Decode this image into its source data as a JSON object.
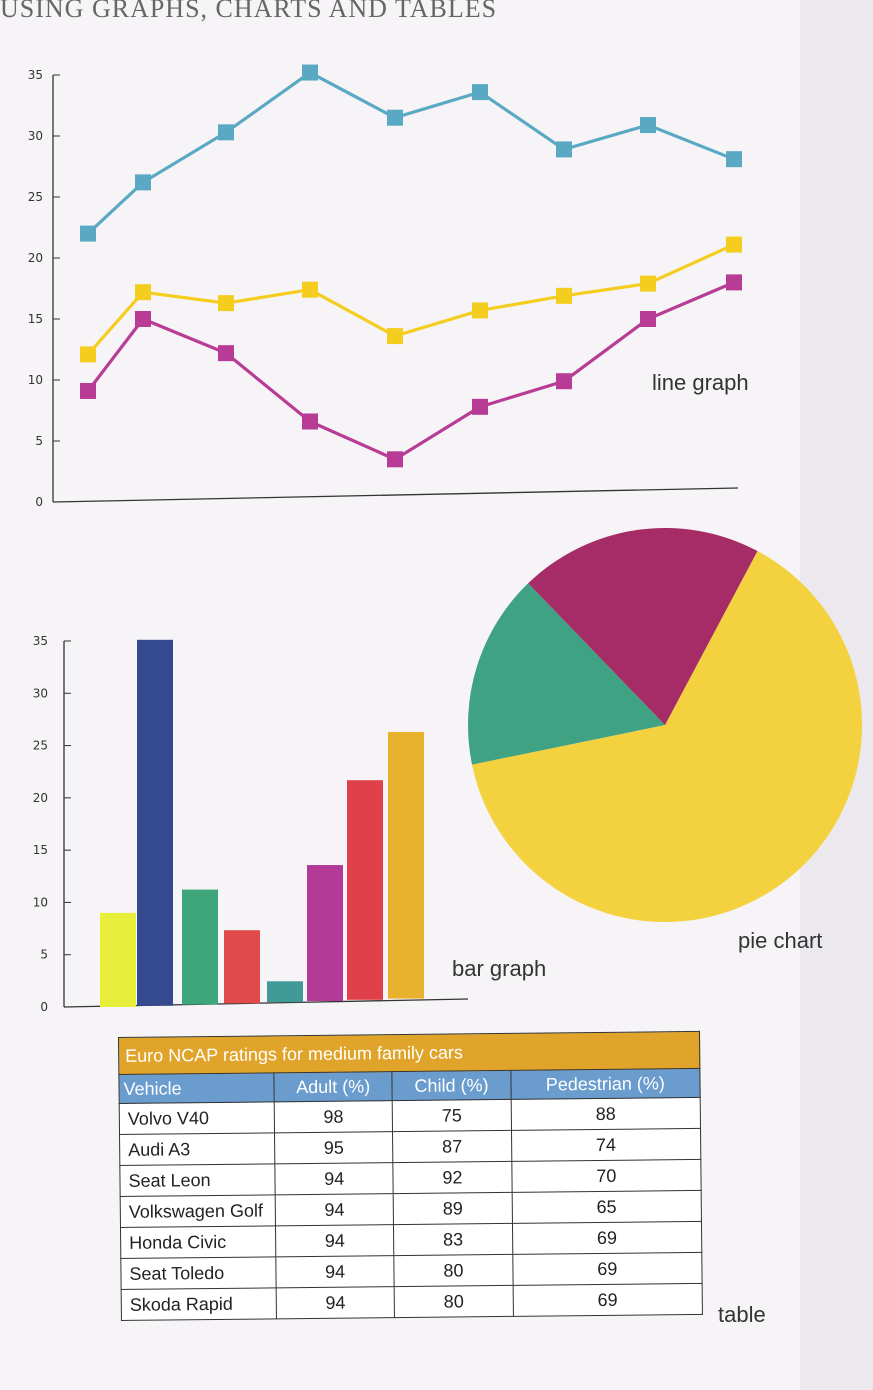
{
  "header": {
    "title": "USING GRAPHS, CHARTS AND TABLES"
  },
  "captions": {
    "line": "line graph",
    "bar": "bar graph",
    "pie": "pie chart",
    "table": "table"
  },
  "chart_data": [
    {
      "type": "line",
      "title": "",
      "xlabel": "",
      "ylabel": "",
      "ylim": [
        0,
        35
      ],
      "yticks": [
        "0",
        "5",
        "10",
        "15",
        "20",
        "25",
        "30",
        "35"
      ],
      "x": [
        1,
        2,
        3,
        4,
        5,
        6,
        7,
        8,
        9
      ],
      "grid": false,
      "series": [
        {
          "color": "#5aa9c4",
          "values": [
            22,
            26.2,
            30.3,
            35.2,
            31.5,
            33.6,
            28.9,
            30.9,
            28.1
          ]
        },
        {
          "color": "#f4cd1f",
          "values": [
            12.1,
            17.2,
            16.3,
            17.4,
            13.6,
            15.7,
            16.9,
            17.9,
            21.1
          ]
        },
        {
          "color": "#b83c96",
          "values": [
            9.1,
            15,
            12.2,
            6.6,
            3.5,
            7.8,
            9.9,
            15,
            18
          ]
        }
      ]
    },
    {
      "type": "bar",
      "title": "",
      "xlabel": "",
      "ylabel": "",
      "ylim": [
        0,
        35
      ],
      "yticks": [
        "0",
        "5",
        "10",
        "15",
        "20",
        "25",
        "30",
        "35"
      ],
      "values": [
        9,
        35,
        11,
        7,
        2,
        13,
        21,
        25.5
      ],
      "colors": [
        "#e8ef3a",
        "#34498f",
        "#3fa57a",
        "#e04a4a",
        "#3f9a98",
        "#b33a96",
        "#e0404a",
        "#e8b22e"
      ],
      "grid": false
    },
    {
      "type": "pie",
      "title": "",
      "slices": [
        {
          "value": 64,
          "color": "#f4d13e"
        },
        {
          "value": 16,
          "color": "#3fa383"
        },
        {
          "value": 20,
          "color": "#a52c66"
        }
      ]
    },
    {
      "type": "table",
      "title": "Euro NCAP ratings for medium family cars",
      "columns": [
        "Vehicle",
        "Adult (%)",
        "Child (%)",
        "Pedestrian (%)"
      ],
      "rows": [
        [
          "Volvo V40",
          "98",
          "75",
          "88"
        ],
        [
          "Audi A3",
          "95",
          "87",
          "74"
        ],
        [
          "Seat Leon",
          "94",
          "92",
          "70"
        ],
        [
          "Volkswagen Golf",
          "94",
          "89",
          "65"
        ],
        [
          "Honda Civic",
          "94",
          "83",
          "69"
        ],
        [
          "Seat Toledo",
          "94",
          "80",
          "69"
        ],
        [
          "Skoda Rapid",
          "94",
          "80",
          "69"
        ]
      ]
    }
  ]
}
